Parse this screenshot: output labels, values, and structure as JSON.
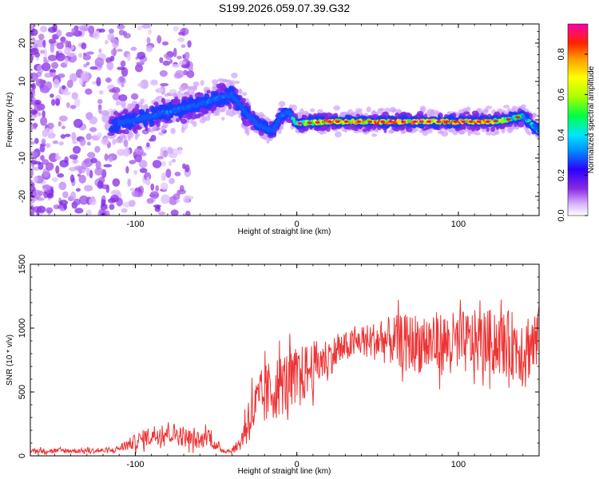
{
  "figure_title": "S199.2026.059.07.39.G32",
  "chart_data": [
    {
      "type": "heatmap",
      "panel": "spectrogram",
      "xlabel": "Height of straight line (km)",
      "ylabel": "Frequency (Hz)",
      "xlim": [
        -165,
        150
      ],
      "ylim": [
        -25,
        25
      ],
      "xticks": [
        -100,
        0,
        100
      ],
      "yticks": [
        -20,
        -10,
        0,
        10,
        20
      ],
      "colorbar": {
        "label": "Normalized spectral amplitude",
        "range": [
          0.0,
          0.95
        ],
        "ticks": [
          0.0,
          0.2,
          0.4,
          0.6,
          0.8
        ]
      },
      "ridge": {
        "description_points_x_km": [
          -165,
          -110,
          -100,
          -90,
          -80,
          -70,
          -60,
          -50,
          -40,
          -30,
          -25,
          -15,
          -10,
          -5,
          0,
          20,
          40,
          60,
          80,
          100,
          120,
          130,
          140,
          150
        ],
        "frequency_hz": [
          -2,
          -1,
          0,
          1,
          2,
          3,
          4,
          5.5,
          6.5,
          1,
          -1,
          -3,
          1,
          2,
          -1,
          -0.5,
          -0.5,
          -0.5,
          -0.5,
          -0.5,
          -0.5,
          0,
          1,
          -3
        ],
        "peak_amplitude": [
          0.05,
          0.1,
          0.2,
          0.3,
          0.35,
          0.35,
          0.3,
          0.35,
          0.3,
          0.2,
          0.15,
          0.15,
          0.3,
          0.35,
          0.6,
          0.9,
          0.85,
          0.9,
          0.85,
          0.9,
          0.85,
          0.6,
          0.5,
          0.4
        ]
      }
    },
    {
      "type": "line",
      "panel": "snr",
      "xlabel": "Height of straight line (km)",
      "ylabel": "SNR (10 * v/v)",
      "xlim": [
        -165,
        150
      ],
      "ylim": [
        0,
        1500
      ],
      "xticks": [
        -100,
        0,
        100
      ],
      "yticks": [
        0,
        500,
        1000,
        1500
      ],
      "color": "#ee3333",
      "series": [
        {
          "name": "SNR",
          "x": [
            -165,
            -150,
            -130,
            -115,
            -110,
            -100,
            -90,
            -80,
            -70,
            -60,
            -55,
            -50,
            -45,
            -40,
            -35,
            -30,
            -20,
            -10,
            0,
            10,
            20,
            30,
            40,
            60,
            80,
            100,
            120,
            140,
            150
          ],
          "mean": [
            40,
            40,
            40,
            40,
            60,
            110,
            160,
            190,
            150,
            110,
            170,
            70,
            40,
            40,
            100,
            300,
            470,
            560,
            600,
            700,
            780,
            850,
            900,
            900,
            880,
            880,
            900,
            850,
            900
          ],
          "spread": [
            20,
            20,
            20,
            20,
            30,
            60,
            80,
            90,
            80,
            60,
            80,
            40,
            20,
            20,
            60,
            200,
            250,
            250,
            250,
            200,
            150,
            120,
            120,
            200,
            250,
            250,
            250,
            280,
            280
          ]
        }
      ]
    }
  ]
}
